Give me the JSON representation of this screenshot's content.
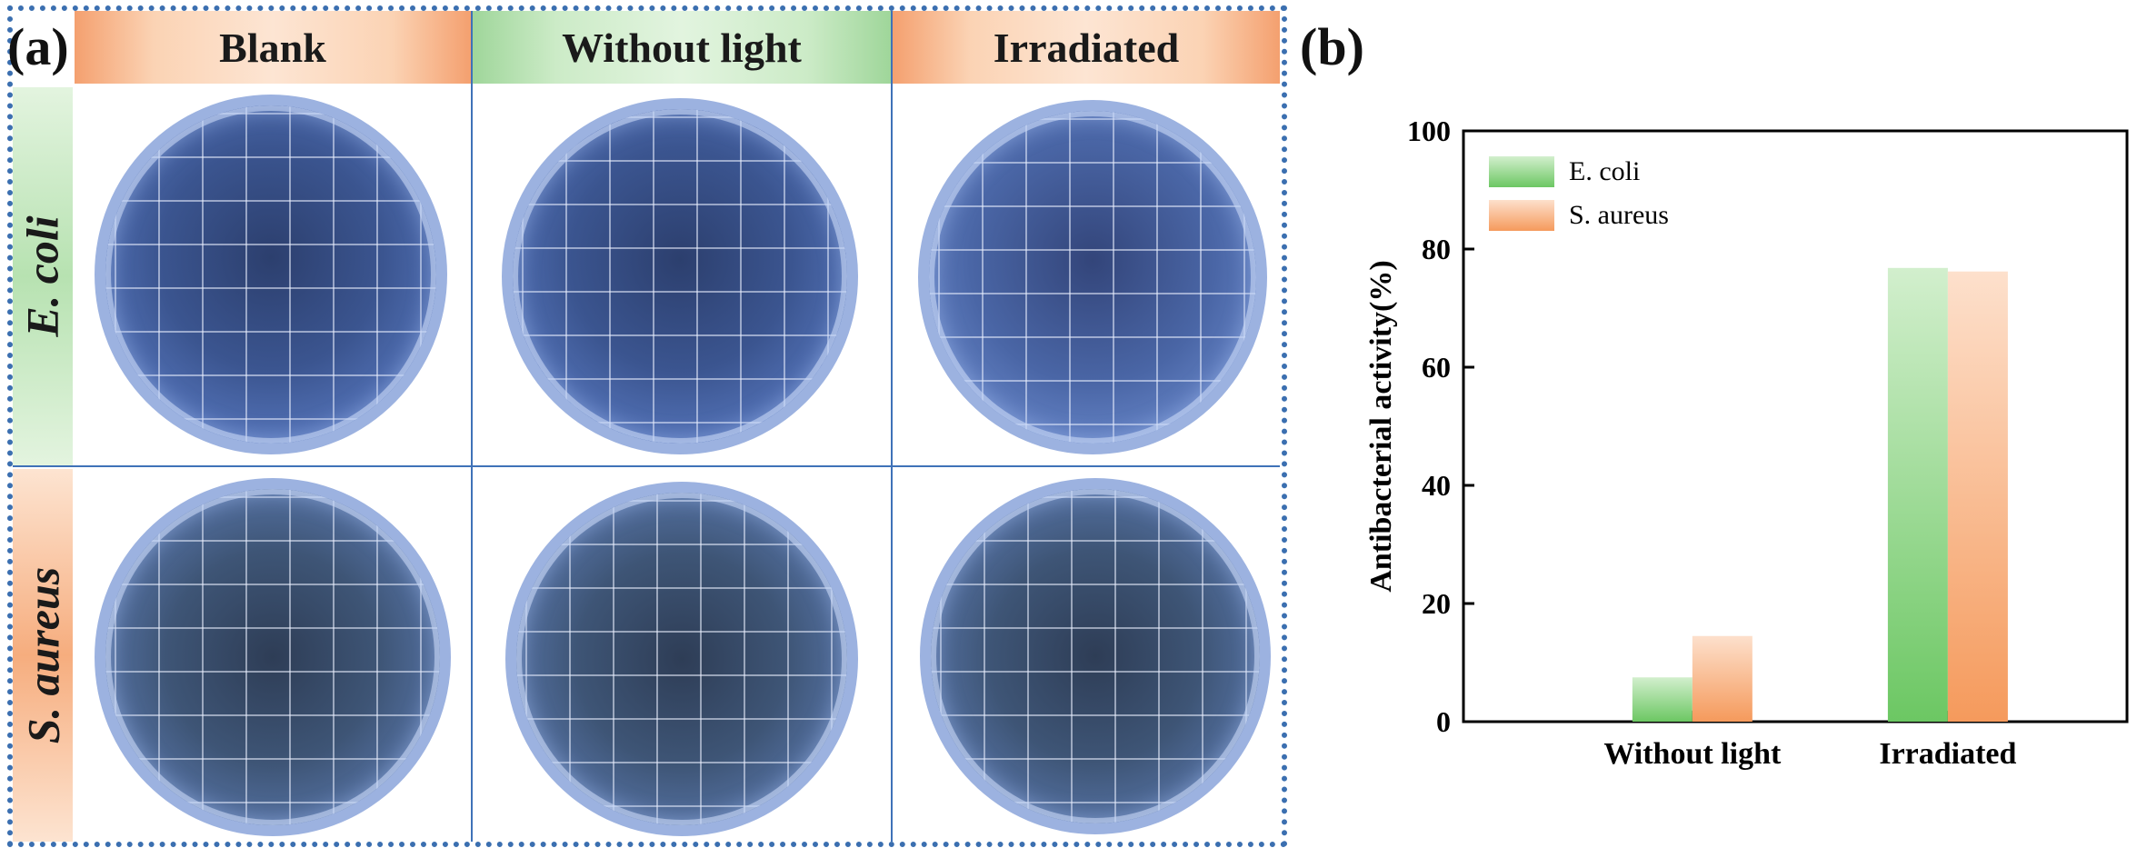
{
  "panel_a": {
    "letter": "(a)",
    "columns": [
      "Blank",
      "Without light",
      "Irradiated"
    ],
    "rows": [
      "E. coli",
      "S. aureus"
    ]
  },
  "panel_b": {
    "letter": "(b)"
  },
  "chart_data": {
    "type": "bar",
    "categories": [
      "Without light",
      "Irradiated"
    ],
    "series": [
      {
        "name": "E. coli",
        "values": [
          7.5,
          76.8
        ],
        "color": "#6cc763"
      },
      {
        "name": "S. aureus",
        "values": [
          14.5,
          76.2
        ],
        "color": "#f59a5c"
      }
    ],
    "xlabel": "",
    "ylabel": "Antibacterial activity(%)",
    "ylim": [
      0,
      100
    ],
    "yticks": [
      0,
      20,
      40,
      60,
      80,
      100
    ],
    "legend": "top-left",
    "grid": false
  }
}
